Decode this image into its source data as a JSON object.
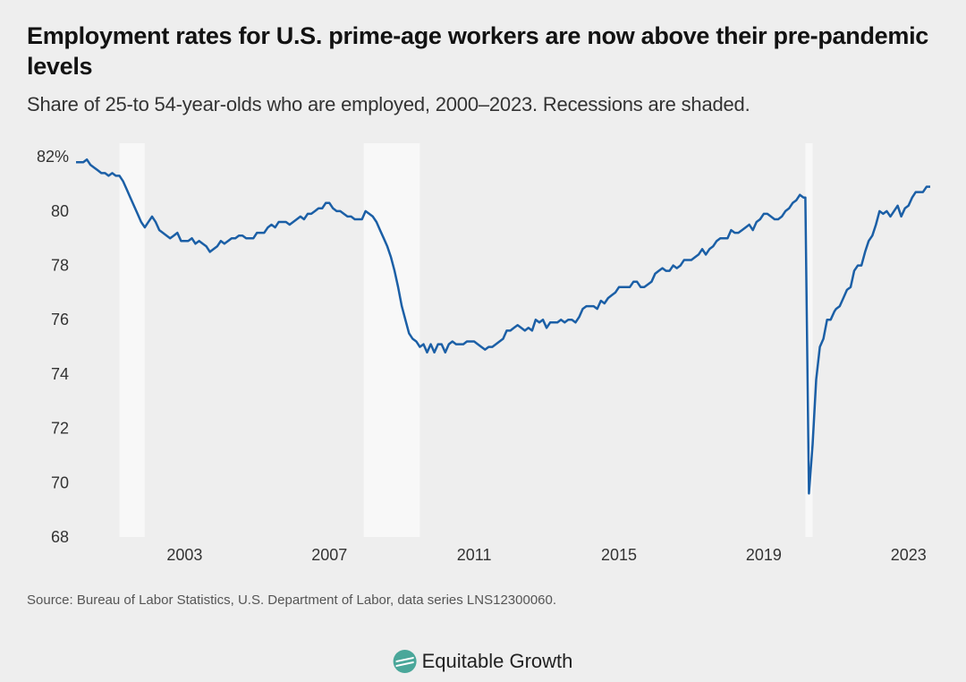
{
  "title": "Employment rates for U.S. prime-age workers are now above their pre-pandemic levels",
  "subtitle": "Share of 25-to 54-year-olds who are employed, 2000–2023. Recessions are shaded.",
  "source": "Source: Bureau of Labor Statistics, U.S. Department of Labor, data series LNS12300060.",
  "brand": "Equitable Growth",
  "chart": {
    "type": "line",
    "background_color": "#eeeeee",
    "plot_background_color": "#eeeeee",
    "recession_shade_color": "#f8f8f8",
    "line_color": "#1b5fa6",
    "line_width": 2.5,
    "text_color": "#333333",
    "title_color": "#121212",
    "title_fontsize": 27,
    "subtitle_fontsize": 22,
    "tick_fontsize": 18,
    "source_fontsize": 15,
    "xlim": [
      2000.0,
      2023.6
    ],
    "ylim": [
      68,
      82.5
    ],
    "y_ticks": [
      68,
      70,
      72,
      74,
      76,
      78,
      80,
      82
    ],
    "y_tick_labels": [
      "68",
      "70",
      "72",
      "74",
      "76",
      "78",
      "80",
      "82%"
    ],
    "x_ticks": [
      2003,
      2007,
      2011,
      2015,
      2019,
      2023
    ],
    "x_tick_labels": [
      "2003",
      "2007",
      "2011",
      "2015",
      "2019",
      "2023"
    ],
    "recessions": [
      {
        "start": 2001.2,
        "end": 2001.9
      },
      {
        "start": 2007.95,
        "end": 2009.5
      },
      {
        "start": 2020.15,
        "end": 2020.35
      }
    ],
    "series": [
      {
        "x": 2000.0,
        "y": 81.8
      },
      {
        "x": 2000.1,
        "y": 81.8
      },
      {
        "x": 2000.2,
        "y": 81.8
      },
      {
        "x": 2000.3,
        "y": 81.9
      },
      {
        "x": 2000.4,
        "y": 81.7
      },
      {
        "x": 2000.5,
        "y": 81.6
      },
      {
        "x": 2000.6,
        "y": 81.5
      },
      {
        "x": 2000.7,
        "y": 81.4
      },
      {
        "x": 2000.8,
        "y": 81.4
      },
      {
        "x": 2000.9,
        "y": 81.3
      },
      {
        "x": 2001.0,
        "y": 81.4
      },
      {
        "x": 2001.1,
        "y": 81.3
      },
      {
        "x": 2001.2,
        "y": 81.3
      },
      {
        "x": 2001.3,
        "y": 81.1
      },
      {
        "x": 2001.4,
        "y": 80.8
      },
      {
        "x": 2001.5,
        "y": 80.5
      },
      {
        "x": 2001.6,
        "y": 80.2
      },
      {
        "x": 2001.7,
        "y": 79.9
      },
      {
        "x": 2001.8,
        "y": 79.6
      },
      {
        "x": 2001.9,
        "y": 79.4
      },
      {
        "x": 2002.0,
        "y": 79.6
      },
      {
        "x": 2002.1,
        "y": 79.8
      },
      {
        "x": 2002.2,
        "y": 79.6
      },
      {
        "x": 2002.3,
        "y": 79.3
      },
      {
        "x": 2002.4,
        "y": 79.2
      },
      {
        "x": 2002.5,
        "y": 79.1
      },
      {
        "x": 2002.6,
        "y": 79.0
      },
      {
        "x": 2002.7,
        "y": 79.1
      },
      {
        "x": 2002.8,
        "y": 79.2
      },
      {
        "x": 2002.9,
        "y": 78.9
      },
      {
        "x": 2003.0,
        "y": 78.9
      },
      {
        "x": 2003.1,
        "y": 78.9
      },
      {
        "x": 2003.2,
        "y": 79.0
      },
      {
        "x": 2003.3,
        "y": 78.8
      },
      {
        "x": 2003.4,
        "y": 78.9
      },
      {
        "x": 2003.5,
        "y": 78.8
      },
      {
        "x": 2003.6,
        "y": 78.7
      },
      {
        "x": 2003.7,
        "y": 78.5
      },
      {
        "x": 2003.8,
        "y": 78.6
      },
      {
        "x": 2003.9,
        "y": 78.7
      },
      {
        "x": 2004.0,
        "y": 78.9
      },
      {
        "x": 2004.1,
        "y": 78.8
      },
      {
        "x": 2004.2,
        "y": 78.9
      },
      {
        "x": 2004.3,
        "y": 79.0
      },
      {
        "x": 2004.4,
        "y": 79.0
      },
      {
        "x": 2004.5,
        "y": 79.1
      },
      {
        "x": 2004.6,
        "y": 79.1
      },
      {
        "x": 2004.7,
        "y": 79.0
      },
      {
        "x": 2004.8,
        "y": 79.0
      },
      {
        "x": 2004.9,
        "y": 79.0
      },
      {
        "x": 2005.0,
        "y": 79.2
      },
      {
        "x": 2005.1,
        "y": 79.2
      },
      {
        "x": 2005.2,
        "y": 79.2
      },
      {
        "x": 2005.3,
        "y": 79.4
      },
      {
        "x": 2005.4,
        "y": 79.5
      },
      {
        "x": 2005.5,
        "y": 79.4
      },
      {
        "x": 2005.6,
        "y": 79.6
      },
      {
        "x": 2005.7,
        "y": 79.6
      },
      {
        "x": 2005.8,
        "y": 79.6
      },
      {
        "x": 2005.9,
        "y": 79.5
      },
      {
        "x": 2006.0,
        "y": 79.6
      },
      {
        "x": 2006.1,
        "y": 79.7
      },
      {
        "x": 2006.2,
        "y": 79.8
      },
      {
        "x": 2006.3,
        "y": 79.7
      },
      {
        "x": 2006.4,
        "y": 79.9
      },
      {
        "x": 2006.5,
        "y": 79.9
      },
      {
        "x": 2006.6,
        "y": 80.0
      },
      {
        "x": 2006.7,
        "y": 80.1
      },
      {
        "x": 2006.8,
        "y": 80.1
      },
      {
        "x": 2006.9,
        "y": 80.3
      },
      {
        "x": 2007.0,
        "y": 80.3
      },
      {
        "x": 2007.1,
        "y": 80.1
      },
      {
        "x": 2007.2,
        "y": 80.0
      },
      {
        "x": 2007.3,
        "y": 80.0
      },
      {
        "x": 2007.4,
        "y": 79.9
      },
      {
        "x": 2007.5,
        "y": 79.8
      },
      {
        "x": 2007.6,
        "y": 79.8
      },
      {
        "x": 2007.7,
        "y": 79.7
      },
      {
        "x": 2007.8,
        "y": 79.7
      },
      {
        "x": 2007.9,
        "y": 79.7
      },
      {
        "x": 2008.0,
        "y": 80.0
      },
      {
        "x": 2008.1,
        "y": 79.9
      },
      {
        "x": 2008.2,
        "y": 79.8
      },
      {
        "x": 2008.3,
        "y": 79.6
      },
      {
        "x": 2008.4,
        "y": 79.3
      },
      {
        "x": 2008.5,
        "y": 79.0
      },
      {
        "x": 2008.6,
        "y": 78.7
      },
      {
        "x": 2008.7,
        "y": 78.3
      },
      {
        "x": 2008.8,
        "y": 77.8
      },
      {
        "x": 2008.9,
        "y": 77.2
      },
      {
        "x": 2009.0,
        "y": 76.5
      },
      {
        "x": 2009.1,
        "y": 76.0
      },
      {
        "x": 2009.2,
        "y": 75.5
      },
      {
        "x": 2009.3,
        "y": 75.3
      },
      {
        "x": 2009.4,
        "y": 75.2
      },
      {
        "x": 2009.5,
        "y": 75.0
      },
      {
        "x": 2009.6,
        "y": 75.1
      },
      {
        "x": 2009.7,
        "y": 74.8
      },
      {
        "x": 2009.8,
        "y": 75.1
      },
      {
        "x": 2009.9,
        "y": 74.8
      },
      {
        "x": 2010.0,
        "y": 75.1
      },
      {
        "x": 2010.1,
        "y": 75.1
      },
      {
        "x": 2010.2,
        "y": 74.8
      },
      {
        "x": 2010.3,
        "y": 75.1
      },
      {
        "x": 2010.4,
        "y": 75.2
      },
      {
        "x": 2010.5,
        "y": 75.1
      },
      {
        "x": 2010.6,
        "y": 75.1
      },
      {
        "x": 2010.7,
        "y": 75.1
      },
      {
        "x": 2010.8,
        "y": 75.2
      },
      {
        "x": 2010.9,
        "y": 75.2
      },
      {
        "x": 2011.0,
        "y": 75.2
      },
      {
        "x": 2011.1,
        "y": 75.1
      },
      {
        "x": 2011.2,
        "y": 75.0
      },
      {
        "x": 2011.3,
        "y": 74.9
      },
      {
        "x": 2011.4,
        "y": 75.0
      },
      {
        "x": 2011.5,
        "y": 75.0
      },
      {
        "x": 2011.6,
        "y": 75.1
      },
      {
        "x": 2011.7,
        "y": 75.2
      },
      {
        "x": 2011.8,
        "y": 75.3
      },
      {
        "x": 2011.9,
        "y": 75.6
      },
      {
        "x": 2012.0,
        "y": 75.6
      },
      {
        "x": 2012.1,
        "y": 75.7
      },
      {
        "x": 2012.2,
        "y": 75.8
      },
      {
        "x": 2012.3,
        "y": 75.7
      },
      {
        "x": 2012.4,
        "y": 75.6
      },
      {
        "x": 2012.5,
        "y": 75.7
      },
      {
        "x": 2012.6,
        "y": 75.6
      },
      {
        "x": 2012.7,
        "y": 76.0
      },
      {
        "x": 2012.8,
        "y": 75.9
      },
      {
        "x": 2012.9,
        "y": 76.0
      },
      {
        "x": 2013.0,
        "y": 75.7
      },
      {
        "x": 2013.1,
        "y": 75.9
      },
      {
        "x": 2013.2,
        "y": 75.9
      },
      {
        "x": 2013.3,
        "y": 75.9
      },
      {
        "x": 2013.4,
        "y": 76.0
      },
      {
        "x": 2013.5,
        "y": 75.9
      },
      {
        "x": 2013.6,
        "y": 76.0
      },
      {
        "x": 2013.7,
        "y": 76.0
      },
      {
        "x": 2013.8,
        "y": 75.9
      },
      {
        "x": 2013.9,
        "y": 76.1
      },
      {
        "x": 2014.0,
        "y": 76.4
      },
      {
        "x": 2014.1,
        "y": 76.5
      },
      {
        "x": 2014.2,
        "y": 76.5
      },
      {
        "x": 2014.3,
        "y": 76.5
      },
      {
        "x": 2014.4,
        "y": 76.4
      },
      {
        "x": 2014.5,
        "y": 76.7
      },
      {
        "x": 2014.6,
        "y": 76.6
      },
      {
        "x": 2014.7,
        "y": 76.8
      },
      {
        "x": 2014.8,
        "y": 76.9
      },
      {
        "x": 2014.9,
        "y": 77.0
      },
      {
        "x": 2015.0,
        "y": 77.2
      },
      {
        "x": 2015.1,
        "y": 77.2
      },
      {
        "x": 2015.2,
        "y": 77.2
      },
      {
        "x": 2015.3,
        "y": 77.2
      },
      {
        "x": 2015.4,
        "y": 77.4
      },
      {
        "x": 2015.5,
        "y": 77.4
      },
      {
        "x": 2015.6,
        "y": 77.2
      },
      {
        "x": 2015.7,
        "y": 77.2
      },
      {
        "x": 2015.8,
        "y": 77.3
      },
      {
        "x": 2015.9,
        "y": 77.4
      },
      {
        "x": 2016.0,
        "y": 77.7
      },
      {
        "x": 2016.1,
        "y": 77.8
      },
      {
        "x": 2016.2,
        "y": 77.9
      },
      {
        "x": 2016.3,
        "y": 77.8
      },
      {
        "x": 2016.4,
        "y": 77.8
      },
      {
        "x": 2016.5,
        "y": 78.0
      },
      {
        "x": 2016.6,
        "y": 77.9
      },
      {
        "x": 2016.7,
        "y": 78.0
      },
      {
        "x": 2016.8,
        "y": 78.2
      },
      {
        "x": 2016.9,
        "y": 78.2
      },
      {
        "x": 2017.0,
        "y": 78.2
      },
      {
        "x": 2017.1,
        "y": 78.3
      },
      {
        "x": 2017.2,
        "y": 78.4
      },
      {
        "x": 2017.3,
        "y": 78.6
      },
      {
        "x": 2017.4,
        "y": 78.4
      },
      {
        "x": 2017.5,
        "y": 78.6
      },
      {
        "x": 2017.6,
        "y": 78.7
      },
      {
        "x": 2017.7,
        "y": 78.9
      },
      {
        "x": 2017.8,
        "y": 79.0
      },
      {
        "x": 2017.9,
        "y": 79.0
      },
      {
        "x": 2018.0,
        "y": 79.0
      },
      {
        "x": 2018.1,
        "y": 79.3
      },
      {
        "x": 2018.2,
        "y": 79.2
      },
      {
        "x": 2018.3,
        "y": 79.2
      },
      {
        "x": 2018.4,
        "y": 79.3
      },
      {
        "x": 2018.5,
        "y": 79.4
      },
      {
        "x": 2018.6,
        "y": 79.5
      },
      {
        "x": 2018.7,
        "y": 79.3
      },
      {
        "x": 2018.8,
        "y": 79.6
      },
      {
        "x": 2018.9,
        "y": 79.7
      },
      {
        "x": 2019.0,
        "y": 79.9
      },
      {
        "x": 2019.1,
        "y": 79.9
      },
      {
        "x": 2019.2,
        "y": 79.8
      },
      {
        "x": 2019.3,
        "y": 79.7
      },
      {
        "x": 2019.4,
        "y": 79.7
      },
      {
        "x": 2019.5,
        "y": 79.8
      },
      {
        "x": 2019.6,
        "y": 80.0
      },
      {
        "x": 2019.7,
        "y": 80.1
      },
      {
        "x": 2019.8,
        "y": 80.3
      },
      {
        "x": 2019.9,
        "y": 80.4
      },
      {
        "x": 2020.0,
        "y": 80.6
      },
      {
        "x": 2020.1,
        "y": 80.5
      },
      {
        "x": 2020.15,
        "y": 80.5
      },
      {
        "x": 2020.25,
        "y": 69.6
      },
      {
        "x": 2020.35,
        "y": 71.4
      },
      {
        "x": 2020.45,
        "y": 73.8
      },
      {
        "x": 2020.55,
        "y": 75.0
      },
      {
        "x": 2020.65,
        "y": 75.3
      },
      {
        "x": 2020.75,
        "y": 76.0
      },
      {
        "x": 2020.85,
        "y": 76.0
      },
      {
        "x": 2020.95,
        "y": 76.3
      },
      {
        "x": 2021.0,
        "y": 76.4
      },
      {
        "x": 2021.1,
        "y": 76.5
      },
      {
        "x": 2021.2,
        "y": 76.8
      },
      {
        "x": 2021.3,
        "y": 77.1
      },
      {
        "x": 2021.4,
        "y": 77.2
      },
      {
        "x": 2021.5,
        "y": 77.8
      },
      {
        "x": 2021.6,
        "y": 78.0
      },
      {
        "x": 2021.7,
        "y": 78.0
      },
      {
        "x": 2021.8,
        "y": 78.5
      },
      {
        "x": 2021.9,
        "y": 78.9
      },
      {
        "x": 2022.0,
        "y": 79.1
      },
      {
        "x": 2022.1,
        "y": 79.5
      },
      {
        "x": 2022.2,
        "y": 80.0
      },
      {
        "x": 2022.3,
        "y": 79.9
      },
      {
        "x": 2022.4,
        "y": 80.0
      },
      {
        "x": 2022.5,
        "y": 79.8
      },
      {
        "x": 2022.6,
        "y": 80.0
      },
      {
        "x": 2022.7,
        "y": 80.2
      },
      {
        "x": 2022.8,
        "y": 79.8
      },
      {
        "x": 2022.9,
        "y": 80.1
      },
      {
        "x": 2023.0,
        "y": 80.2
      },
      {
        "x": 2023.1,
        "y": 80.5
      },
      {
        "x": 2023.2,
        "y": 80.7
      },
      {
        "x": 2023.3,
        "y": 80.7
      },
      {
        "x": 2023.4,
        "y": 80.7
      },
      {
        "x": 2023.5,
        "y": 80.9
      },
      {
        "x": 2023.6,
        "y": 80.9
      }
    ]
  }
}
